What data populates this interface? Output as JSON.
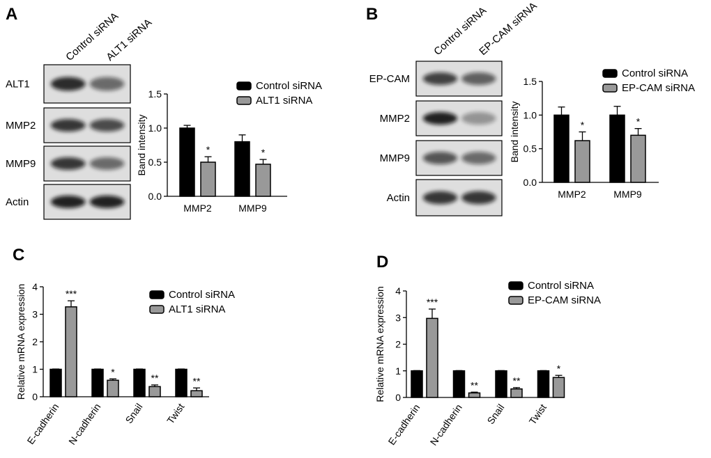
{
  "panel_labels": [
    "A",
    "B",
    "C",
    "D"
  ],
  "blots": [
    {
      "columns": [
        "Control siRNA",
        "ALT1 siRNA"
      ],
      "rows": [
        "ALT1",
        "MMP2",
        "MMP9",
        "Actin"
      ]
    },
    {
      "columns": [
        "Control siRNA",
        "EP-CAM siRNA"
      ],
      "rows": [
        "EP-CAM",
        "MMP2",
        "MMP9",
        "Actin"
      ]
    }
  ],
  "chart_data": [
    {
      "type": "bar",
      "ylabel": "Band intensity",
      "categories": [
        "MMP2",
        "MMP9"
      ],
      "series": [
        {
          "name": "Control siRNA",
          "color": "#000000",
          "values": [
            1.0,
            0.8
          ],
          "errors": [
            0.04,
            0.1
          ]
        },
        {
          "name": "ALT1 siRNA",
          "color": "#999999",
          "values": [
            0.5,
            0.47
          ],
          "errors": [
            0.08,
            0.07
          ],
          "annotations": [
            "*",
            "*"
          ]
        }
      ],
      "ylim": [
        0,
        1.5
      ],
      "yticks": [
        {
          "value": 0,
          "label": "0.0"
        },
        0.5,
        {
          "value": 1,
          "label": "1.0"
        },
        1.5
      ]
    },
    {
      "type": "bar",
      "ylabel": "Band intensity",
      "categories": [
        "MMP2",
        "MMP9"
      ],
      "series": [
        {
          "name": "Control siRNA",
          "color": "#000000",
          "values": [
            1.0,
            1.0
          ],
          "errors": [
            0.12,
            0.13
          ]
        },
        {
          "name": "EP-CAM siRNA",
          "color": "#999999",
          "values": [
            0.62,
            0.7
          ],
          "errors": [
            0.13,
            0.1
          ],
          "annotations": [
            "*",
            "*"
          ]
        }
      ],
      "ylim": [
        0,
        1.5
      ],
      "yticks": [
        {
          "value": 0,
          "label": "0.0"
        },
        0.5,
        {
          "value": 1,
          "label": "1.0"
        },
        1.5
      ]
    },
    {
      "type": "bar",
      "ylabel": "Relative mRNA expression",
      "categories": [
        "E-cadherin",
        "N-cadherin",
        "Snail",
        "Twist"
      ],
      "series": [
        {
          "name": "Control siRNA",
          "color": "#000000",
          "values": [
            1,
            1,
            1,
            1
          ],
          "errors": [
            0.01,
            0.01,
            0.01,
            0.01
          ]
        },
        {
          "name": "ALT1 siRNA",
          "color": "#999999",
          "values": [
            3.27,
            0.6,
            0.37,
            0.22
          ],
          "errors": [
            0.22,
            0.05,
            0.06,
            0.1
          ],
          "annotations": [
            "***",
            "*",
            "**",
            "**"
          ]
        }
      ],
      "ylim": [
        0,
        4
      ],
      "yticks": [
        0,
        1,
        2,
        3,
        4
      ]
    },
    {
      "type": "bar",
      "ylabel": "Relative mRNA expression",
      "categories": [
        "E-cadherin",
        "N-cadherin",
        "Snail",
        "Twist"
      ],
      "series": [
        {
          "name": "Control siRNA",
          "color": "#000000",
          "values": [
            1,
            1,
            1,
            1
          ],
          "errors": [
            0.01,
            0.01,
            0.01,
            0.01
          ]
        },
        {
          "name": "EP-CAM siRNA",
          "color": "#999999",
          "values": [
            2.97,
            0.17,
            0.32,
            0.75
          ],
          "errors": [
            0.35,
            0.03,
            0.05,
            0.08
          ],
          "annotations": [
            "***",
            "**",
            "**",
            "*"
          ]
        }
      ],
      "ylim": [
        0,
        4
      ],
      "yticks": [
        0,
        1,
        2,
        3,
        4
      ]
    }
  ]
}
